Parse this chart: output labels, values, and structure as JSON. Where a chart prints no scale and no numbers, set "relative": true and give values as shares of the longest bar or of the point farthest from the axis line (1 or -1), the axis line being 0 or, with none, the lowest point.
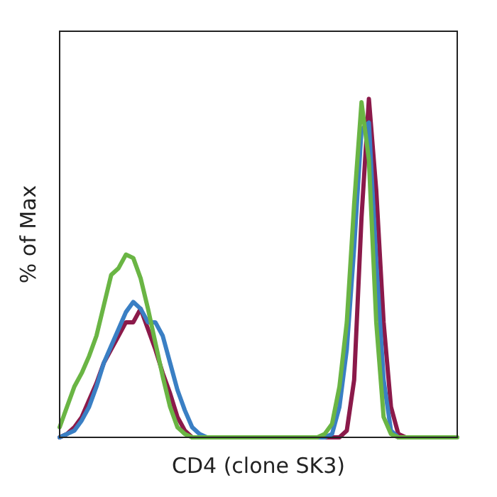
{
  "chart_data": {
    "type": "line",
    "relative": true,
    "xlabel": "CD4 (clone SK3)",
    "ylabel": "% of Max",
    "legend": false,
    "grid": false,
    "marker": "none",
    "line_style": "solid",
    "categories": [
      null,
      null,
      null,
      null,
      null,
      null,
      null,
      null,
      null,
      null,
      null,
      null,
      null,
      null,
      null,
      null,
      null,
      null,
      null,
      null,
      null,
      null,
      null,
      null,
      null,
      null,
      null,
      null,
      null,
      null,
      null,
      null,
      null,
      null,
      null,
      null,
      null,
      null,
      null,
      null,
      null,
      null,
      null,
      null,
      null,
      null,
      null,
      null,
      null,
      null,
      null,
      null,
      null,
      null,
      null
    ],
    "series": [
      {
        "color": "#6ab544",
        "values": [
          0.03,
          0.09,
          0.15,
          0.19,
          0.24,
          0.3,
          0.39,
          0.48,
          0.5,
          0.54,
          0.53,
          0.47,
          0.38,
          0.28,
          0.18,
          0.09,
          0.03,
          0.01,
          0,
          0,
          0,
          0,
          0,
          0,
          0,
          0,
          0,
          0,
          0,
          0,
          0,
          0,
          0,
          0,
          0,
          0,
          0.01,
          0.04,
          0.15,
          0.34,
          0.69,
          0.99,
          0.82,
          0.34,
          0.06,
          0.01,
          0,
          0,
          0,
          0,
          0,
          0,
          0,
          0,
          0
        ]
      },
      {
        "color": "#3a7fc4",
        "values": [
          0,
          0.01,
          0.02,
          0.05,
          0.09,
          0.15,
          0.22,
          0.27,
          0.32,
          0.37,
          0.4,
          0.38,
          0.34,
          0.34,
          0.3,
          0.22,
          0.14,
          0.08,
          0.03,
          0.01,
          0,
          0,
          0,
          0,
          0,
          0,
          0,
          0,
          0,
          0,
          0,
          0,
          0,
          0,
          0,
          0,
          0,
          0.01,
          0.09,
          0.26,
          0.56,
          0.91,
          0.93,
          0.52,
          0.17,
          0.02,
          0,
          null,
          null,
          null,
          null,
          null,
          null,
          null,
          null
        ]
      },
      {
        "color": "#8b1a4a",
        "values": [
          0,
          0.01,
          0.03,
          0.06,
          0.11,
          0.16,
          0.22,
          0.26,
          0.3,
          0.34,
          0.34,
          0.38,
          0.32,
          0.26,
          0.19,
          0.13,
          0.06,
          0.02,
          0,
          0,
          0,
          0,
          0,
          0,
          0,
          0,
          0,
          0,
          0,
          0,
          0,
          0,
          0,
          0,
          0,
          0,
          0,
          0,
          0,
          0.02,
          0.17,
          0.65,
          1,
          0.73,
          0.34,
          0.09,
          0.01,
          0,
          null,
          null,
          null,
          null,
          null,
          null,
          null
        ]
      }
    ]
  }
}
